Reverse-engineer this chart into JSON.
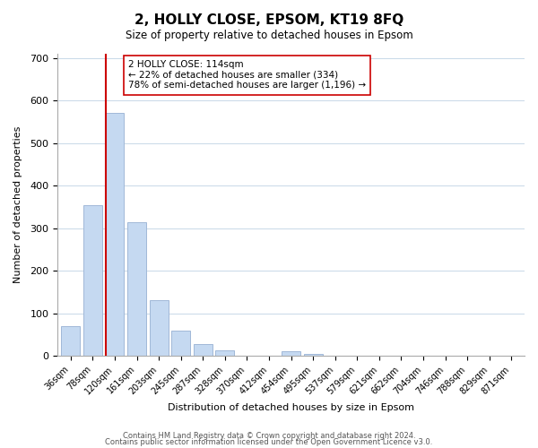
{
  "title": "2, HOLLY CLOSE, EPSOM, KT19 8FQ",
  "subtitle": "Size of property relative to detached houses in Epsom",
  "xlabel": "Distribution of detached houses by size in Epsom",
  "ylabel": "Number of detached properties",
  "bar_labels": [
    "36sqm",
    "78sqm",
    "120sqm",
    "161sqm",
    "203sqm",
    "245sqm",
    "287sqm",
    "328sqm",
    "370sqm",
    "412sqm",
    "454sqm",
    "495sqm",
    "537sqm",
    "579sqm",
    "621sqm",
    "662sqm",
    "704sqm",
    "746sqm",
    "788sqm",
    "829sqm",
    "871sqm"
  ],
  "bar_heights": [
    70,
    355,
    570,
    315,
    130,
    58,
    27,
    13,
    0,
    0,
    10,
    4,
    0,
    0,
    0,
    0,
    0,
    0,
    0,
    0,
    0
  ],
  "bar_color": "#c5d9f1",
  "bar_edge_color": "#a0b8d8",
  "ylim": [
    0,
    710
  ],
  "yticks": [
    0,
    100,
    200,
    300,
    400,
    500,
    600,
    700
  ],
  "vline_bar_index": 2,
  "vline_color": "#cc0000",
  "annotation_text": "2 HOLLY CLOSE: 114sqm\n← 22% of detached houses are smaller (334)\n78% of semi-detached houses are larger (1,196) →",
  "annotation_box_color": "#ffffff",
  "annotation_box_edge": "#cc0000",
  "footer_line1": "Contains HM Land Registry data © Crown copyright and database right 2024.",
  "footer_line2": "Contains public sector information licensed under the Open Government Licence v3.0.",
  "background_color": "#ffffff",
  "grid_color": "#c8d8e8"
}
